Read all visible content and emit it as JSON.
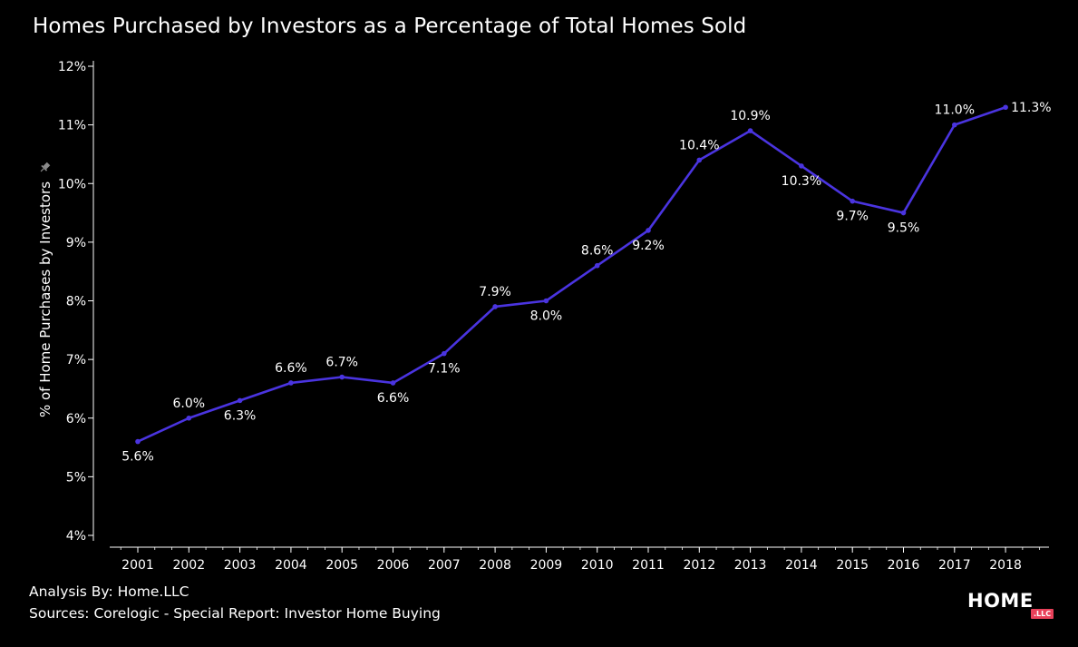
{
  "chart_data": {
    "type": "line",
    "title": "Homes Purchased by Investors as a Percentage of Total Homes Sold",
    "xlabel": "",
    "ylabel": "% of Home Purchases by Investors",
    "ylim": [
      4,
      12
    ],
    "yticks": [
      4,
      5,
      6,
      7,
      8,
      9,
      10,
      11,
      12
    ],
    "ytick_labels": [
      "4%",
      "5%",
      "6%",
      "7%",
      "8%",
      "9%",
      "10%",
      "11%",
      "12%"
    ],
    "categories": [
      "2001",
      "2002",
      "2003",
      "2004",
      "2005",
      "2006",
      "2007",
      "2008",
      "2009",
      "2010",
      "2011",
      "2012",
      "2013",
      "2014",
      "2015",
      "2016",
      "2017",
      "2018"
    ],
    "series": [
      {
        "name": "% of Home Purchases by Investors",
        "color": "#4a34e0",
        "values": [
          5.6,
          6.0,
          6.3,
          6.6,
          6.7,
          6.6,
          7.1,
          7.9,
          8.0,
          8.6,
          9.2,
          10.4,
          10.9,
          10.3,
          9.7,
          9.5,
          11.0,
          11.3
        ],
        "labels": [
          "5.6%",
          "6.0%",
          "6.3%",
          "6.6%",
          "6.7%",
          "6.6%",
          "7.1%",
          "7.9%",
          "8.0%",
          "8.6%",
          "9.2%",
          "10.4%",
          "10.9%",
          "10.3%",
          "9.7%",
          "9.5%",
          "11.0%",
          "11.3%"
        ],
        "label_position": [
          "below",
          "above",
          "below",
          "above",
          "above",
          "below",
          "below",
          "above",
          "below",
          "above",
          "below",
          "above",
          "above",
          "below",
          "below",
          "below",
          "above",
          "right"
        ]
      }
    ],
    "grid": false,
    "legend": "none",
    "background": "#000000"
  },
  "footer": {
    "analysis": "Analysis By: Home.LLC",
    "sources": "Sources: Corelogic - Special Report: Investor Home Buying"
  },
  "brand": {
    "name": "HOME",
    "badge": ".LLC",
    "badge_color": "#e8415a"
  }
}
